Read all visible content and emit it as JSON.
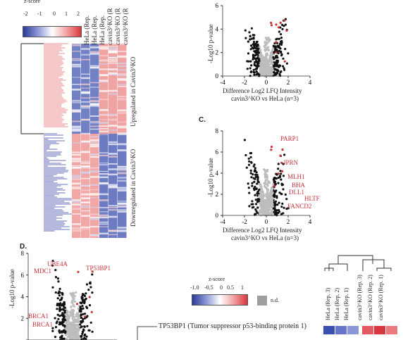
{
  "colors": {
    "red": "#e46a6a",
    "blue": "#3a44a8",
    "grey_points": "#bdbdbd",
    "label_red": "#c8323a"
  },
  "heatmap": {
    "scale_title": "z-score",
    "scale_ticks": [
      "-2",
      "-1",
      "0",
      "1",
      "2"
    ],
    "columns": [
      "HeLa (Rep.",
      "HeLa (Rep.",
      "HeLa (Rep.",
      "cavin3^KO (R",
      "cavin3^KO (R",
      "cavin3^KO (R"
    ],
    "upregulated_label": "Upregulated in Cavin3^KO",
    "downregulated_label": "Downregulated in Cavin3^KO"
  },
  "volcano_top": {
    "ylabel": "-Log10 p-value",
    "xlabel_line1": "Difference Log2 LFQ Intensity",
    "xlabel_line2": "cavin3^KO vs HeLa (n=3)",
    "x_ticks": [
      "-4",
      "-2",
      "0",
      "2",
      "4"
    ],
    "y_ticks": [
      "0",
      "2",
      "4",
      "6"
    ]
  },
  "panel_c": {
    "letter": "C.",
    "ylabel": "-Log10 p-value",
    "xlabel_line1": "Difference Log2 LFQ Intensity",
    "xlabel_line2": "cavin3^KO vs HeLa (n=3)",
    "x_ticks": [
      "-4",
      "-2",
      "0",
      "2",
      "4"
    ],
    "y_ticks": [
      "0",
      "2",
      "4",
      "6",
      "8"
    ],
    "gene_labels": [
      "PARP1",
      "FANCD2",
      "HLTF",
      "BHA",
      "DLL1",
      "MLH1",
      "JPRN"
    ]
  },
  "panel_d": {
    "letter": "D.",
    "ylabel": "-Log10 p-value",
    "y_ticks": [
      "2",
      "4",
      "6",
      "8"
    ],
    "gene_labels": [
      "UBE4A",
      "MDC1",
      "TP53BP1",
      "BRCA1",
      "BRCA1"
    ],
    "scale_title": "z-score",
    "scale_ticks": [
      "-1.0",
      "-0.5",
      "0",
      "0.5",
      "1"
    ],
    "nd_label": "n.d.",
    "protein_label": "TP53BP1 (Tumor suppressor p53-binding protein 1)",
    "columns": [
      "HeLa (Rep. 3)",
      "HeLa (Rep. 2)",
      "HeLa (Rep. 1)",
      "cavin3^KO (Rep. 3)",
      "cavin3^KO (Rep. 2)",
      "cavin3^KO (Rep. 1)"
    ]
  }
}
